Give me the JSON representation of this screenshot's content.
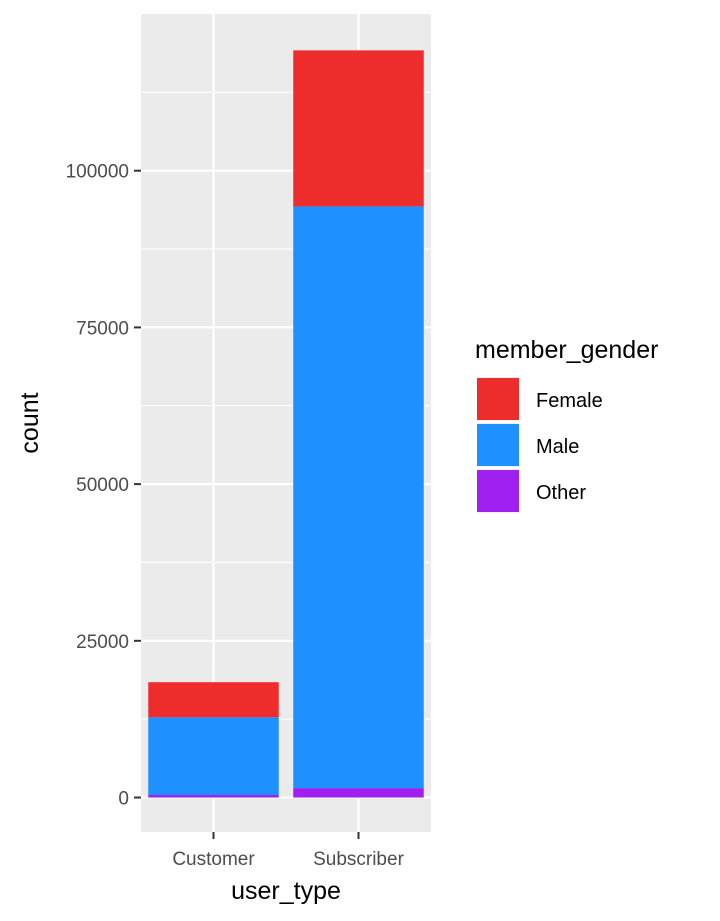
{
  "chart_data": {
    "type": "bar",
    "stacked": true,
    "categories": [
      "Customer",
      "Subscriber"
    ],
    "series": [
      {
        "name": "Female",
        "values": [
          5600,
          24900
        ],
        "color": "#EE2C2C"
      },
      {
        "name": "Male",
        "values": [
          12400,
          92800
        ],
        "color": "#1E90FF"
      },
      {
        "name": "Other",
        "values": [
          400,
          1500
        ],
        "color": "#A020F0"
      }
    ],
    "yticks": [
      0,
      25000,
      50000,
      75000,
      100000
    ],
    "ytick_labels": [
      "0",
      "25000",
      "50000",
      "75000",
      "100000"
    ],
    "ylim": [
      -5500,
      125000
    ],
    "xlabel": "user_type",
    "ylabel": "count",
    "legend_title": "member_gender",
    "legend_position": "right",
    "grid": true,
    "panel_background": "#EBEBEB",
    "grid_color": "#FFFFFF"
  }
}
